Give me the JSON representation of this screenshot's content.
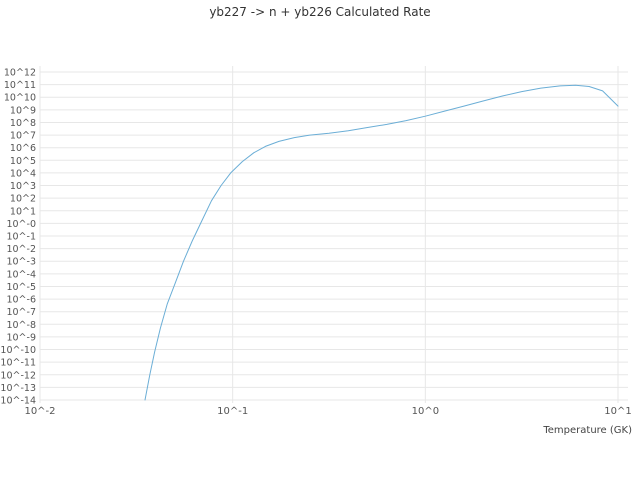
{
  "chart": {
    "title": "yb227 -> n + yb226 Calculated Rate",
    "xlabel": "Temperature (GK)"
  },
  "chart_data": {
    "type": "line",
    "title": "yb227 -> n + yb226 Calculated Rate",
    "xlabel": "Temperature (GK)",
    "ylabel": "",
    "x_unit": "GK",
    "x_scale": "log",
    "y_scale": "log",
    "xlim_log10": [
      -2,
      1
    ],
    "ylim_log10": [
      -14,
      12
    ],
    "grid": true,
    "legend": "none",
    "line_color": "#6baed6",
    "grid_color": "#e7e7e7",
    "text_color": "#555555",
    "x_ticks": [
      {
        "label": "10^-2",
        "log10": -2
      },
      {
        "label": "10^-1",
        "log10": -1
      },
      {
        "label": "10^0",
        "log10": 0
      },
      {
        "label": "10^1",
        "log10": 1
      }
    ],
    "y_ticks": [
      {
        "label": "10^12",
        "log10": 12
      },
      {
        "label": "10^11",
        "log10": 11
      },
      {
        "label": "10^10",
        "log10": 10
      },
      {
        "label": "10^9",
        "log10": 9
      },
      {
        "label": "10^8",
        "log10": 8
      },
      {
        "label": "10^7",
        "log10": 7
      },
      {
        "label": "10^6",
        "log10": 6
      },
      {
        "label": "10^5",
        "log10": 5
      },
      {
        "label": "10^4",
        "log10": 4
      },
      {
        "label": "10^3",
        "log10": 3
      },
      {
        "label": "10^2",
        "log10": 2
      },
      {
        "label": "10^1",
        "log10": 1
      },
      {
        "label": "10^-0",
        "log10": 0
      },
      {
        "label": "10^-1",
        "log10": -1
      },
      {
        "label": "10^-2",
        "log10": -2
      },
      {
        "label": "10^-3",
        "log10": -3
      },
      {
        "label": "10^-4",
        "log10": -4
      },
      {
        "label": "10^-5",
        "log10": -5
      },
      {
        "label": "10^-6",
        "log10": -6
      },
      {
        "label": "10^-7",
        "log10": -7
      },
      {
        "label": "10^-8",
        "log10": -8
      },
      {
        "label": "10^-9",
        "log10": -9
      },
      {
        "label": "10^-10",
        "log10": -10
      },
      {
        "label": "10^-11",
        "log10": -11
      },
      {
        "label": "10^-12",
        "log10": -12
      },
      {
        "label": "10^-13",
        "log10": -13
      },
      {
        "label": "10^-14",
        "log10": -14
      }
    ],
    "series": [
      {
        "name": "yb227 -> n + yb226 calculated rate",
        "points_log10": [
          [
            -1.455,
            -14.0
          ],
          [
            -1.43,
            -12.0
          ],
          [
            -1.405,
            -10.2
          ],
          [
            -1.375,
            -8.3
          ],
          [
            -1.34,
            -6.4
          ],
          [
            -1.3,
            -4.8
          ],
          [
            -1.255,
            -3.0
          ],
          [
            -1.21,
            -1.4
          ],
          [
            -1.16,
            0.2
          ],
          [
            -1.11,
            1.8
          ],
          [
            -1.06,
            3.0
          ],
          [
            -1.01,
            4.0
          ],
          [
            -0.95,
            4.9
          ],
          [
            -0.89,
            5.6
          ],
          [
            -0.83,
            6.1
          ],
          [
            -0.76,
            6.5
          ],
          [
            -0.68,
            6.8
          ],
          [
            -0.6,
            7.0
          ],
          [
            -0.5,
            7.15
          ],
          [
            -0.4,
            7.35
          ],
          [
            -0.3,
            7.6
          ],
          [
            -0.2,
            7.85
          ],
          [
            -0.1,
            8.15
          ],
          [
            0.0,
            8.5
          ],
          [
            0.1,
            8.9
          ],
          [
            0.2,
            9.3
          ],
          [
            0.3,
            9.7
          ],
          [
            0.4,
            10.1
          ],
          [
            0.5,
            10.45
          ],
          [
            0.6,
            10.72
          ],
          [
            0.7,
            10.9
          ],
          [
            0.78,
            10.95
          ],
          [
            0.85,
            10.85
          ],
          [
            0.92,
            10.5
          ],
          [
            1.0,
            9.3
          ]
        ]
      }
    ]
  }
}
